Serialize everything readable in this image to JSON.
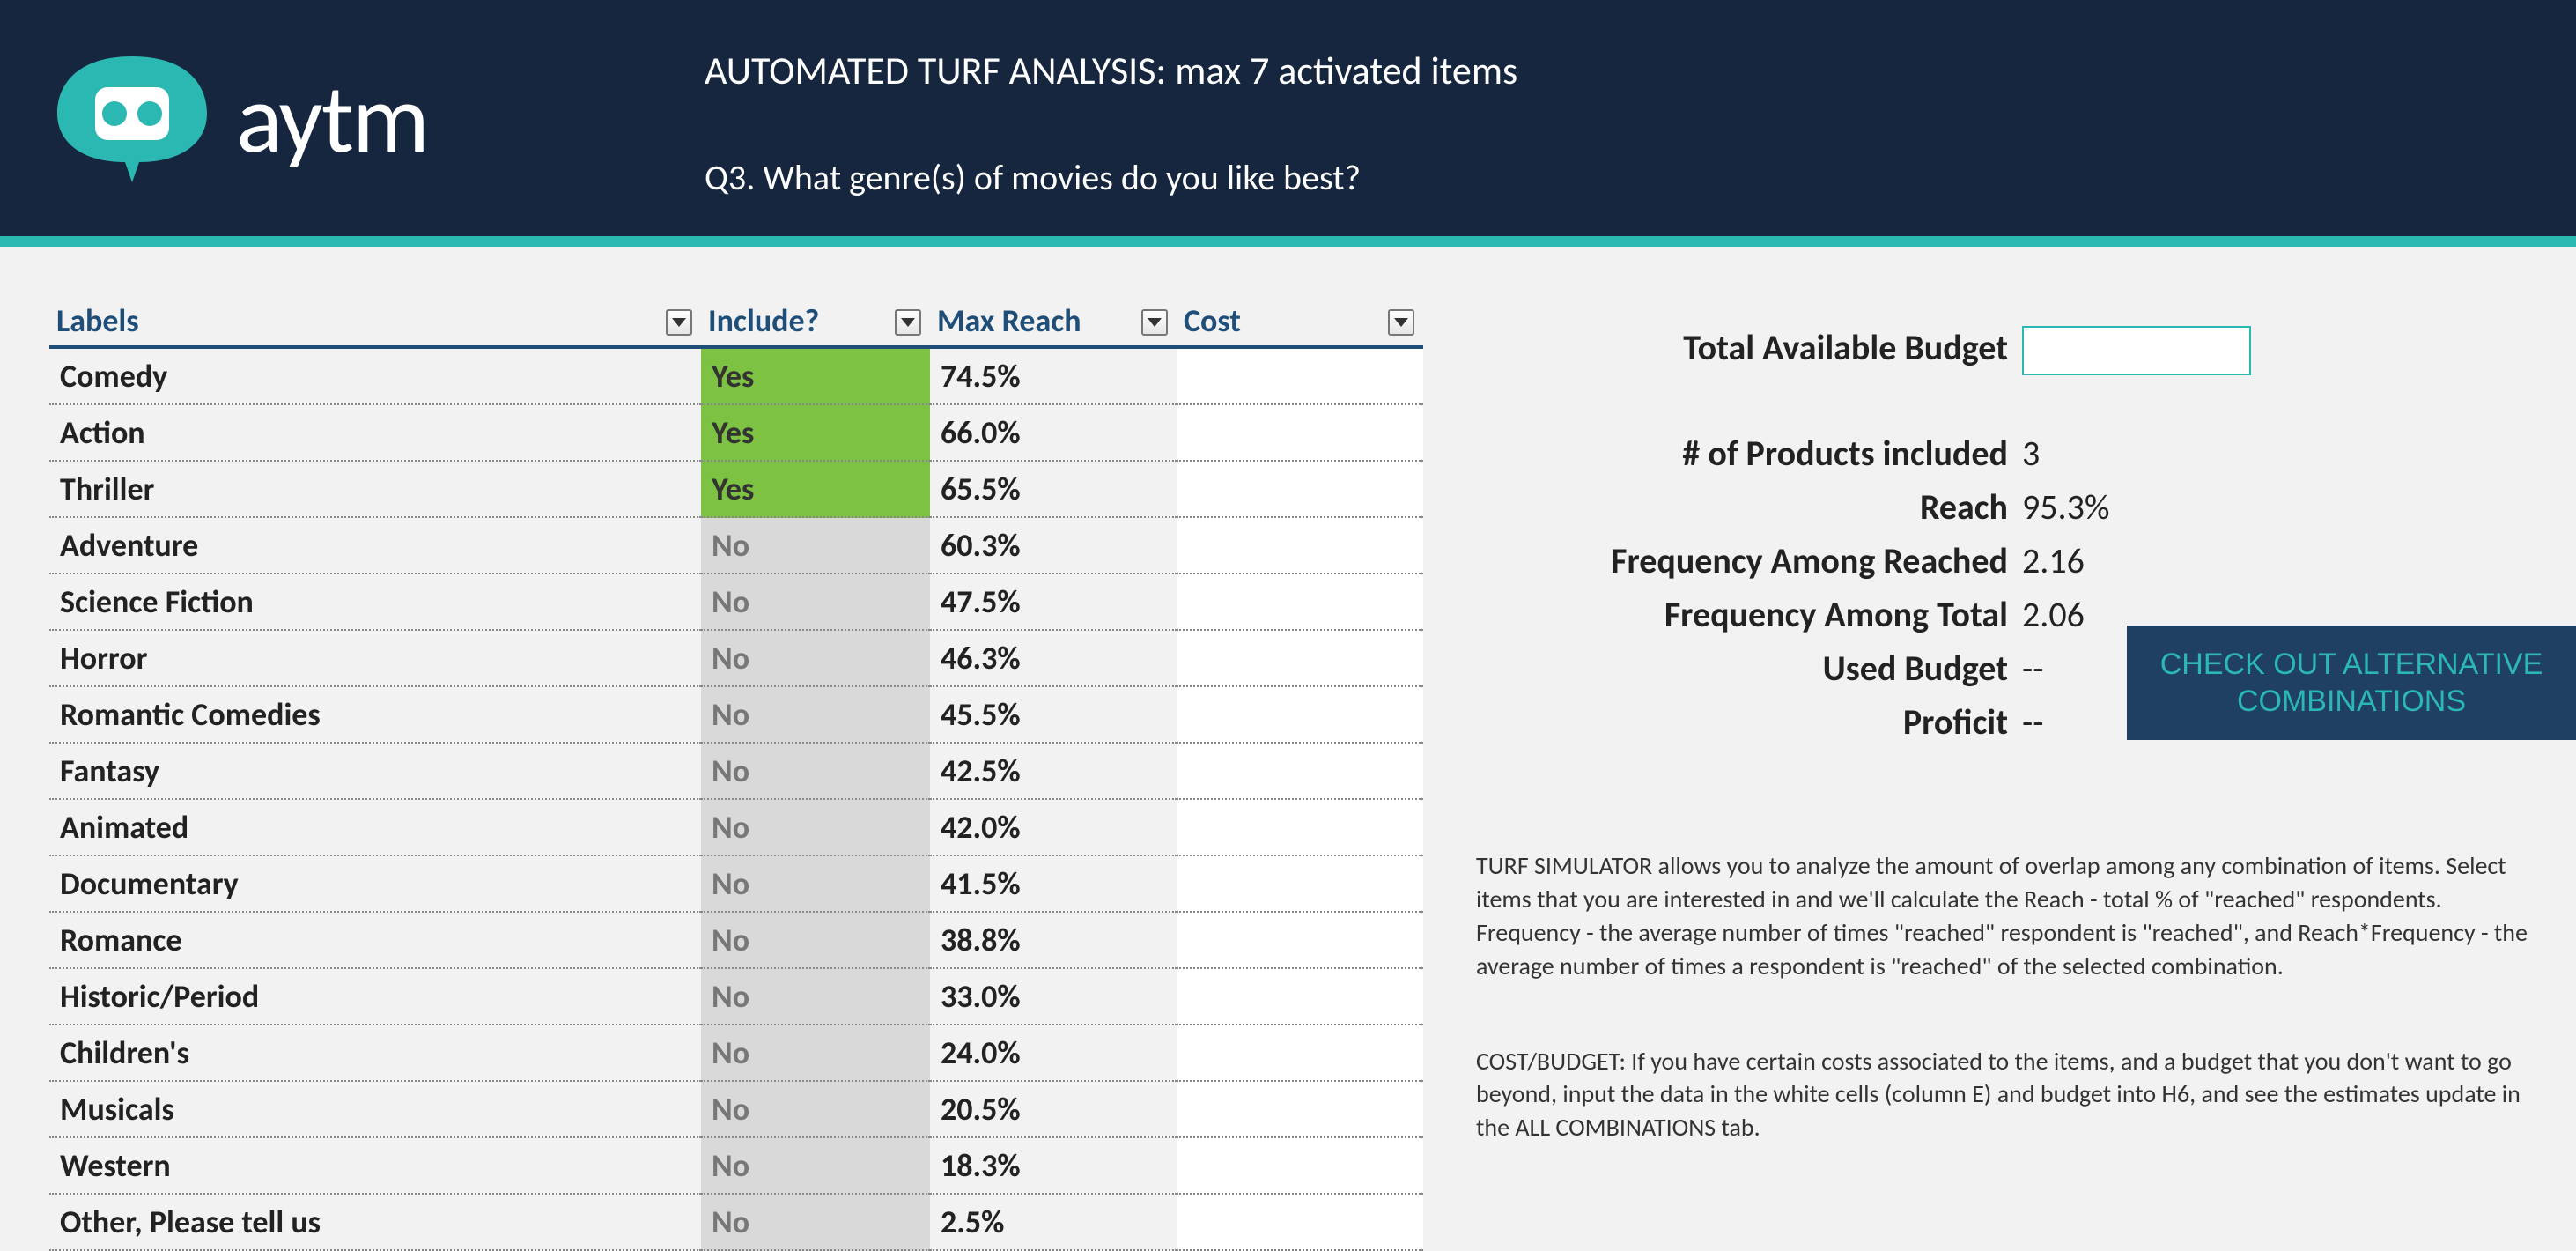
{
  "brand": {
    "name": "aytm",
    "accent_color": "#2cb8b2",
    "dark_bg": "#16263f",
    "green": "#7dc242"
  },
  "header": {
    "title": "AUTOMATED TURF ANALYSIS: max 7 activated items",
    "question": "Q3. What genre(s) of movies do you like best?"
  },
  "table": {
    "columns": {
      "labels": "Labels",
      "include": "Include?",
      "max_reach": "Max Reach",
      "cost": "Cost"
    },
    "rows": [
      {
        "label": "Comedy",
        "include": "Yes",
        "reach": "74.5%",
        "cost": ""
      },
      {
        "label": "Action",
        "include": "Yes",
        "reach": "66.0%",
        "cost": ""
      },
      {
        "label": "Thriller",
        "include": "Yes",
        "reach": "65.5%",
        "cost": ""
      },
      {
        "label": "Adventure",
        "include": "No",
        "reach": "60.3%",
        "cost": ""
      },
      {
        "label": "Science Fiction",
        "include": "No",
        "reach": "47.5%",
        "cost": ""
      },
      {
        "label": "Horror",
        "include": "No",
        "reach": "46.3%",
        "cost": ""
      },
      {
        "label": "Romantic Comedies",
        "include": "No",
        "reach": "45.5%",
        "cost": ""
      },
      {
        "label": "Fantasy",
        "include": "No",
        "reach": "42.5%",
        "cost": ""
      },
      {
        "label": "Animated",
        "include": "No",
        "reach": "42.0%",
        "cost": ""
      },
      {
        "label": "Documentary",
        "include": "No",
        "reach": "41.5%",
        "cost": ""
      },
      {
        "label": "Romance",
        "include": "No",
        "reach": "38.8%",
        "cost": ""
      },
      {
        "label": "Historic/Period",
        "include": "No",
        "reach": "33.0%",
        "cost": ""
      },
      {
        "label": "Children's",
        "include": "No",
        "reach": "24.0%",
        "cost": ""
      },
      {
        "label": "Musicals",
        "include": "No",
        "reach": "20.5%",
        "cost": ""
      },
      {
        "label": "Western",
        "include": "No",
        "reach": "18.3%",
        "cost": ""
      },
      {
        "label": "Other, Please tell us",
        "include": "No",
        "reach": "2.5%",
        "cost": ""
      }
    ]
  },
  "stats": {
    "total_budget_label": "Total Available Budget",
    "total_budget_value": "",
    "products_label": "# of Products included",
    "products_value": "3",
    "reach_label": "Reach",
    "reach_value": "95.3%",
    "freq_reached_label": "Frequency Among Reached",
    "freq_reached_value": "2.16",
    "freq_total_label": "Frequency Among Total",
    "freq_total_value": "2.06",
    "used_budget_label": "Used Budget",
    "used_budget_value": "--",
    "profit_label": "Proficit",
    "profit_value": "--"
  },
  "button": {
    "label": "CHECK OUT ALTERNATIVE COMBINATIONS"
  },
  "help": {
    "p1": "TURF SIMULATOR allows you to analyze the amount of overlap among any combination of items. Select items that you are interested in and we'll calculate the Reach - total % of \"reached\" respondents. Frequency - the average number of times \"reached\" respondent is \"reached\", and  Reach*Frequency - the average number of times a respondent is \"reached\" of the selected combination.",
    "p2": "COST/BUDGET: If you have certain costs associated to the items, and a budget that you don't want to go beyond, input the data in the white cells (column E) and budget into H6, and see the estimates update in the ALL COMBINATIONS tab."
  }
}
